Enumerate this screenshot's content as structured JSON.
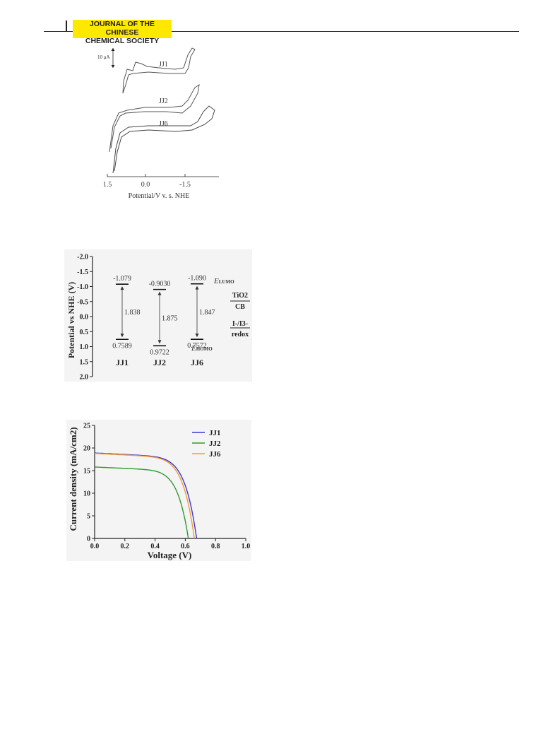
{
  "header": {
    "journal_line1": "JOURNAL OF THE CHINESE",
    "journal_line2": "CHEMICAL SOCIETY"
  },
  "chart_data": [
    {
      "type": "line",
      "scale_label": "10 μA",
      "xlabel": "Potential/V v. s. NHE",
      "x_ticks": [
        "1.5",
        "0.0",
        "-1.5"
      ],
      "series": [
        {
          "name": "JJ1"
        },
        {
          "name": "JJ2"
        },
        {
          "name": "JJ6"
        }
      ]
    },
    {
      "type": "diagram",
      "ylabel": "Potential vs NHE (V)",
      "y_ticks": [
        "-2.0",
        "-1.5",
        "-1.0",
        "-0.5",
        "0.0",
        "0.5",
        "1.0",
        "1.5",
        "2.0"
      ],
      "ylim": [
        -2.0,
        2.0
      ],
      "dyes": [
        {
          "name": "JJ1",
          "lumo": -1.079,
          "lumo_label": "-1.079",
          "homo": 0.7589,
          "homo_label": "0.7589",
          "gap_label": "1.838"
        },
        {
          "name": "JJ2",
          "lumo": -0.903,
          "lumo_label": "-0.9030",
          "homo": 0.9722,
          "homo_label": "0.9722",
          "gap_label": "1.875"
        },
        {
          "name": "JJ6",
          "lumo": -1.09,
          "lumo_label": "-1.090",
          "homo": 0.7572,
          "homo_label": "0.7572",
          "gap_label": "1.847"
        }
      ],
      "elumo_label": "E",
      "elumo_sub": "LUMO",
      "ehomo_label": "E",
      "ehomo_sub": "HOMO",
      "ref_labels": {
        "tio2_top": "TiO2",
        "tio2_bottom": "CB",
        "redox_top": "I-/I3-",
        "redox_bottom": "redox"
      }
    },
    {
      "type": "line",
      "xlabel": "Voltage (V)",
      "ylabel": "Current density (mA/cm2)",
      "xlim": [
        0.0,
        1.0
      ],
      "ylim": [
        0,
        25
      ],
      "x_ticks": [
        "0.0",
        "0.2",
        "0.4",
        "0.6",
        "0.8",
        "1.0"
      ],
      "y_ticks": [
        "0",
        "5",
        "10",
        "15",
        "20",
        "25"
      ],
      "series": [
        {
          "name": "JJ1",
          "color": "#3a3ad6",
          "jsc": 18.9,
          "voc": 0.675
        },
        {
          "name": "JJ2",
          "color": "#2f9a2f",
          "jsc": 15.8,
          "voc": 0.62
        },
        {
          "name": "JJ6",
          "color": "#f59a2e",
          "jsc": 18.8,
          "voc": 0.66
        }
      ]
    }
  ]
}
